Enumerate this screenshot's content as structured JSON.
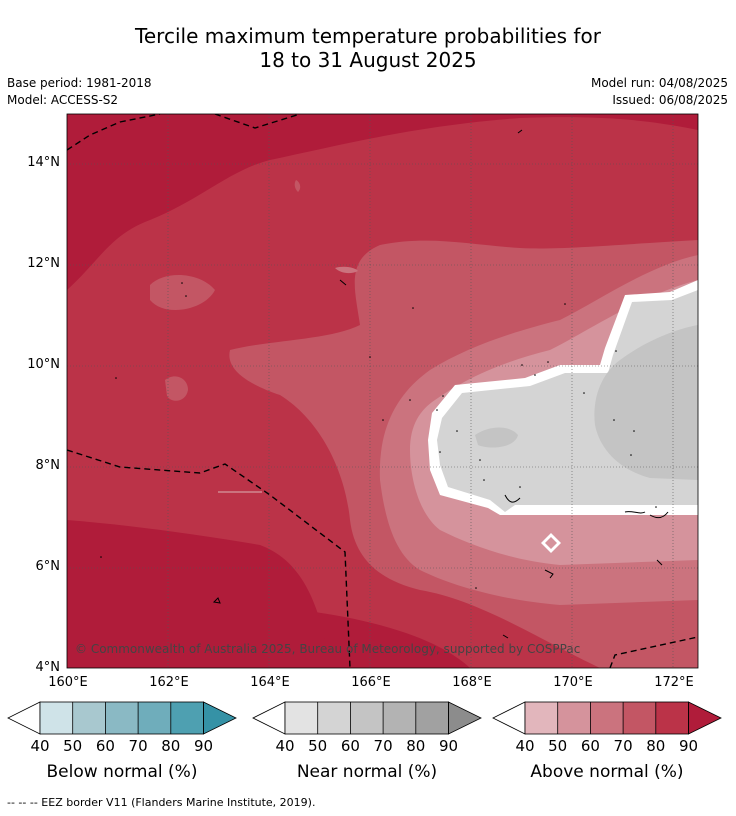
{
  "title_line1": "Tercile maximum temperature probabilities for",
  "title_line2": "18 to 31 August 2025",
  "base_period": "Base period: 1981-2018",
  "model": "Model: ACCESS-S2",
  "model_run": "Model run: 04/08/2025",
  "issued": "Issued: 06/08/2025",
  "copyright": "© Commonwealth of Australia 2025, Bureau of Meteorology, supported by COSPPac",
  "footnote": "--  --  -- EEZ border V11 (Flanders Marine Institute, 2019).",
  "map": {
    "lat_labels": [
      "14°N",
      "12°N",
      "10°N",
      "8°N",
      "6°N",
      "4°N"
    ],
    "lon_labels": [
      "160°E",
      "162°E",
      "164°E",
      "166°E",
      "168°E",
      "170°E",
      "172°E"
    ],
    "lat_range": [
      4,
      15
    ],
    "lon_range": [
      160,
      172.5
    ]
  },
  "legends": [
    {
      "label": "Below normal (%)",
      "ticks": [
        "40",
        "50",
        "60",
        "70",
        "80",
        "90"
      ],
      "colors": [
        "#cfe3e8",
        "#a8c8cf",
        "#8ab9c4",
        "#6fadbb",
        "#4ea0b1",
        "#3592a6"
      ]
    },
    {
      "label": "Near normal (%)",
      "ticks": [
        "40",
        "50",
        "60",
        "70",
        "80",
        "90"
      ],
      "colors": [
        "#e3e3e3",
        "#d4d4d4",
        "#c4c4c4",
        "#b3b3b3",
        "#a1a1a1",
        "#8c8c8c"
      ]
    },
    {
      "label": "Above normal (%)",
      "ticks": [
        "40",
        "50",
        "60",
        "70",
        "80",
        "90"
      ],
      "colors": [
        "#e2b6bc",
        "#d5939c",
        "#cb737e",
        "#c35664",
        "#bb3348",
        "#b01c3a"
      ]
    }
  ]
}
